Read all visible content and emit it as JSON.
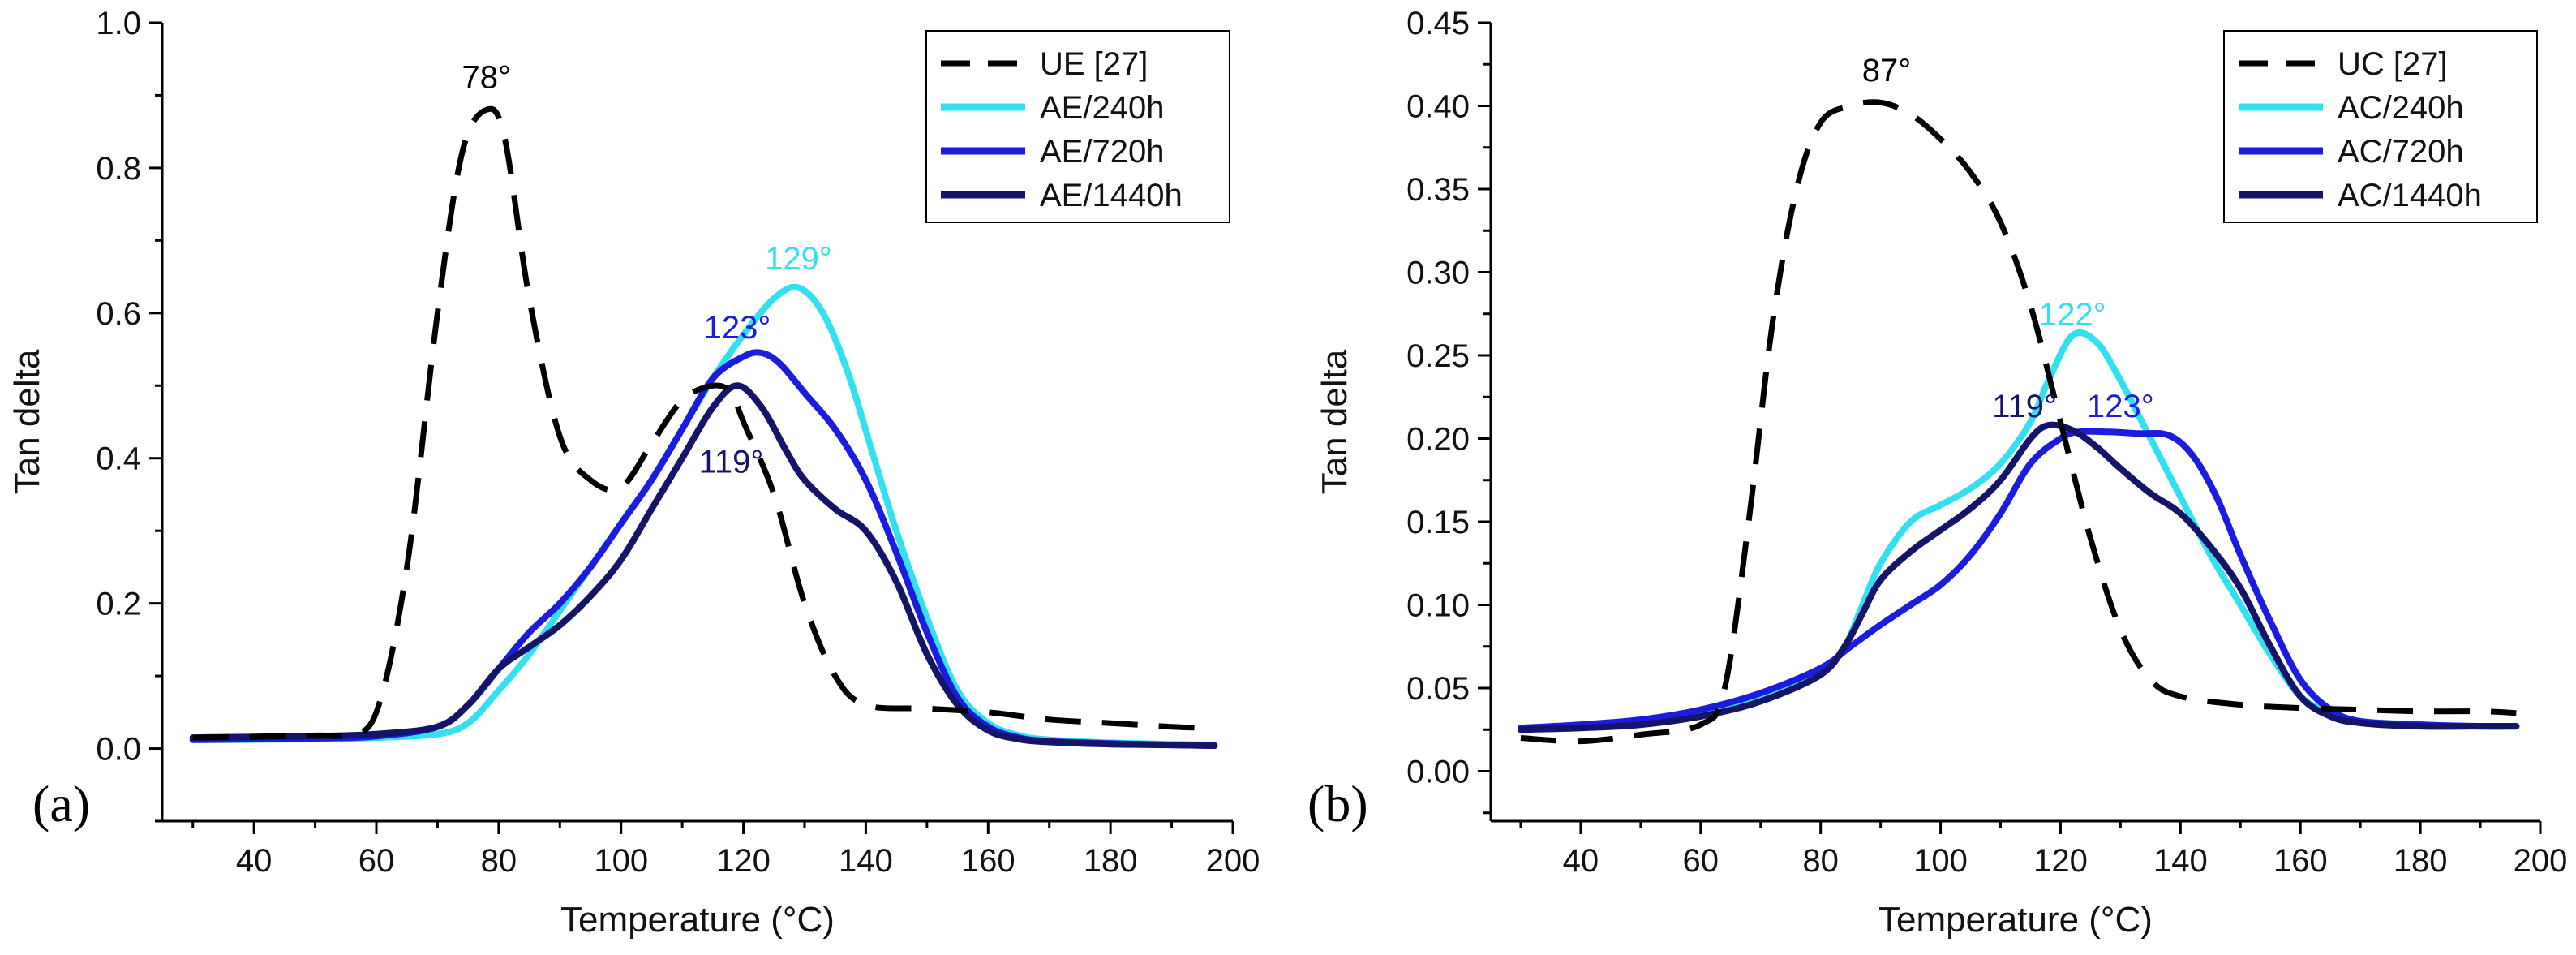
{
  "chart_data": [
    {
      "type": "line",
      "panel_label": "(a)",
      "xlabel": "Temperature (°C)",
      "ylabel": "Tan delta",
      "xlim": [
        25,
        200
      ],
      "ylim": [
        -0.1,
        1.0
      ],
      "xticks": [
        40,
        60,
        80,
        100,
        120,
        140,
        160,
        180,
        200
      ],
      "yticks": [
        0.0,
        0.2,
        0.4,
        0.6,
        0.8,
        1.0
      ],
      "ytick_labels": [
        "0.0",
        "0.2",
        "0.4",
        "0.6",
        "0.8",
        "1.0"
      ],
      "legend_position": "top-right",
      "series": [
        {
          "name": "UE [27]",
          "color": "#000000",
          "dashed": true,
          "x": [
            30,
            50,
            55,
            60,
            65,
            70,
            74,
            78,
            81,
            85,
            90,
            95,
            100,
            105,
            110,
            115,
            118,
            120,
            125,
            130,
            135,
            140,
            150,
            160,
            170,
            180,
            190,
            197
          ],
          "y": [
            0.015,
            0.018,
            0.02,
            0.05,
            0.25,
            0.6,
            0.82,
            0.88,
            0.84,
            0.62,
            0.43,
            0.37,
            0.36,
            0.42,
            0.48,
            0.5,
            0.49,
            0.45,
            0.35,
            0.2,
            0.1,
            0.06,
            0.055,
            0.05,
            0.04,
            0.035,
            0.03,
            0.028
          ]
        },
        {
          "name": "AE/240h",
          "color": "#33e0f0",
          "dashed": false,
          "x": [
            30,
            50,
            60,
            70,
            75,
            80,
            85,
            90,
            95,
            100,
            105,
            110,
            115,
            120,
            125,
            129,
            133,
            137,
            141,
            145,
            150,
            155,
            160,
            165,
            170,
            180,
            190,
            197
          ],
          "y": [
            0.012,
            0.013,
            0.015,
            0.02,
            0.035,
            0.08,
            0.13,
            0.19,
            0.25,
            0.31,
            0.37,
            0.44,
            0.51,
            0.57,
            0.62,
            0.635,
            0.6,
            0.52,
            0.41,
            0.3,
            0.18,
            0.08,
            0.035,
            0.018,
            0.012,
            0.008,
            0.006,
            0.005
          ]
        },
        {
          "name": "AE/720h",
          "color": "#1c1ce0",
          "dashed": false,
          "x": [
            30,
            50,
            60,
            70,
            75,
            80,
            85,
            90,
            95,
            100,
            105,
            110,
            115,
            120,
            123,
            126,
            130,
            135,
            140,
            145,
            150,
            155,
            160,
            165,
            170,
            180,
            190,
            197
          ],
          "y": [
            0.012,
            0.014,
            0.017,
            0.03,
            0.06,
            0.11,
            0.16,
            0.2,
            0.25,
            0.31,
            0.37,
            0.44,
            0.51,
            0.54,
            0.545,
            0.53,
            0.49,
            0.44,
            0.37,
            0.27,
            0.16,
            0.07,
            0.03,
            0.015,
            0.01,
            0.007,
            0.005,
            0.004
          ]
        },
        {
          "name": "AE/1440h",
          "color": "#141468",
          "dashed": false,
          "x": [
            30,
            50,
            60,
            70,
            75,
            80,
            85,
            90,
            95,
            100,
            105,
            110,
            115,
            119,
            123,
            127,
            130,
            135,
            140,
            145,
            150,
            155,
            160,
            165,
            170,
            180,
            190,
            197
          ],
          "y": [
            0.015,
            0.017,
            0.02,
            0.03,
            0.06,
            0.11,
            0.14,
            0.17,
            0.21,
            0.26,
            0.33,
            0.4,
            0.47,
            0.5,
            0.47,
            0.41,
            0.37,
            0.33,
            0.3,
            0.23,
            0.13,
            0.06,
            0.025,
            0.013,
            0.009,
            0.006,
            0.005,
            0.004
          ]
        }
      ],
      "annotations": [
        {
          "text": "78°",
          "x": 78,
          "y": 0.91,
          "color": "#000000"
        },
        {
          "text": "129°",
          "x": 129,
          "y": 0.66,
          "color": "#33e0f0"
        },
        {
          "text": "123°",
          "x": 119,
          "y": 0.565,
          "color": "#1c1ce0"
        },
        {
          "text": "119°",
          "x": 118,
          "y": 0.38,
          "color": "#141468"
        }
      ]
    },
    {
      "type": "line",
      "panel_label": "(b)",
      "xlabel": "Temperature (°C)",
      "ylabel": "Tan delta",
      "xlim": [
        25,
        200
      ],
      "ylim": [
        -0.03,
        0.45
      ],
      "xticks": [
        40,
        60,
        80,
        100,
        120,
        140,
        160,
        180,
        200
      ],
      "yticks": [
        0.0,
        0.05,
        0.1,
        0.15,
        0.2,
        0.25,
        0.3,
        0.35,
        0.4,
        0.45
      ],
      "ytick_labels": [
        "0.00",
        "0.05",
        "0.10",
        "0.15",
        "0.20",
        "0.25",
        "0.30",
        "0.35",
        "0.40",
        "0.45"
      ],
      "legend_position": "top-right",
      "series": [
        {
          "name": "UC [27]",
          "color": "#000000",
          "dashed": true,
          "x": [
            30,
            40,
            50,
            60,
            64,
            68,
            72,
            76,
            80,
            85,
            90,
            95,
            100,
            105,
            110,
            115,
            120,
            125,
            130,
            135,
            140,
            150,
            160,
            170,
            180,
            190,
            196
          ],
          "y": [
            0.02,
            0.018,
            0.022,
            0.028,
            0.05,
            0.15,
            0.27,
            0.35,
            0.39,
            0.4,
            0.402,
            0.395,
            0.38,
            0.36,
            0.33,
            0.28,
            0.21,
            0.14,
            0.085,
            0.055,
            0.045,
            0.04,
            0.038,
            0.037,
            0.036,
            0.036,
            0.035
          ]
        },
        {
          "name": "AC/240h",
          "color": "#33e0f0",
          "dashed": false,
          "x": [
            30,
            40,
            50,
            60,
            70,
            80,
            84,
            87,
            90,
            95,
            100,
            105,
            110,
            115,
            118,
            122,
            126,
            130,
            135,
            140,
            145,
            150,
            155,
            160,
            165,
            170,
            180,
            190,
            196
          ],
          "y": [
            0.026,
            0.027,
            0.03,
            0.036,
            0.046,
            0.06,
            0.075,
            0.1,
            0.125,
            0.15,
            0.16,
            0.17,
            0.185,
            0.21,
            0.235,
            0.262,
            0.258,
            0.235,
            0.2,
            0.165,
            0.13,
            0.1,
            0.07,
            0.045,
            0.035,
            0.03,
            0.028,
            0.027,
            0.027
          ]
        },
        {
          "name": "AC/720h",
          "color": "#1c1ce0",
          "dashed": false,
          "x": [
            30,
            40,
            50,
            60,
            70,
            80,
            85,
            90,
            95,
            100,
            105,
            110,
            115,
            120,
            123,
            128,
            133,
            138,
            142,
            146,
            150,
            155,
            160,
            165,
            170,
            180,
            190,
            196
          ],
          "y": [
            0.026,
            0.028,
            0.031,
            0.037,
            0.047,
            0.062,
            0.075,
            0.088,
            0.1,
            0.112,
            0.13,
            0.155,
            0.185,
            0.2,
            0.204,
            0.204,
            0.203,
            0.202,
            0.19,
            0.165,
            0.13,
            0.09,
            0.055,
            0.037,
            0.03,
            0.028,
            0.027,
            0.027
          ]
        },
        {
          "name": "AC/1440h",
          "color": "#141468",
          "dashed": false,
          "x": [
            30,
            40,
            50,
            60,
            70,
            80,
            84,
            87,
            90,
            95,
            100,
            105,
            110,
            115,
            118,
            122,
            126,
            130,
            135,
            140,
            145,
            150,
            155,
            160,
            165,
            170,
            180,
            190,
            196
          ],
          "y": [
            0.025,
            0.026,
            0.028,
            0.033,
            0.042,
            0.058,
            0.075,
            0.095,
            0.115,
            0.132,
            0.145,
            0.158,
            0.175,
            0.2,
            0.208,
            0.205,
            0.195,
            0.182,
            0.167,
            0.155,
            0.135,
            0.11,
            0.075,
            0.045,
            0.033,
            0.029,
            0.027,
            0.027,
            0.027
          ]
        }
      ],
      "annotations": [
        {
          "text": "87°",
          "x": 91,
          "y": 0.415,
          "color": "#000000"
        },
        {
          "text": "122°",
          "x": 122,
          "y": 0.268,
          "color": "#33e0f0"
        },
        {
          "text": "119°",
          "x": 114,
          "y": 0.213,
          "color": "#141468"
        },
        {
          "text": "123°",
          "x": 130,
          "y": 0.213,
          "color": "#1c1ce0"
        }
      ]
    }
  ]
}
